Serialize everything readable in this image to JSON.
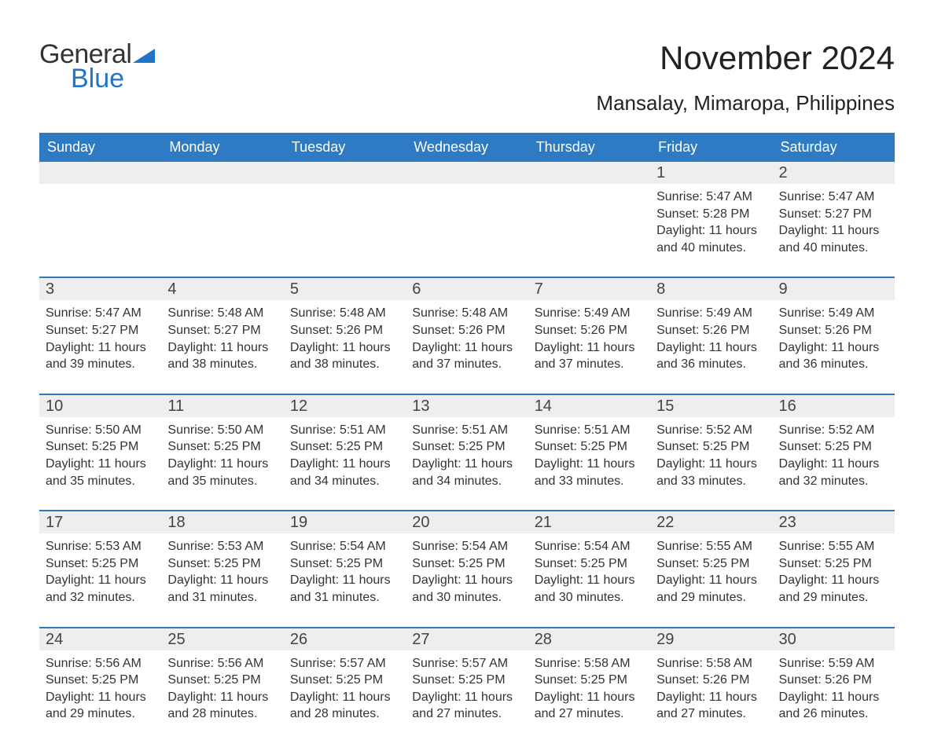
{
  "logo": {
    "text_general": "General",
    "text_blue": "Blue",
    "flag_color": "#1f76c7"
  },
  "title": "November 2024",
  "location": "Mansalay, Mimaropa, Philippines",
  "colors": {
    "header_bg": "#2f7bc3",
    "header_text": "#ffffff",
    "daynum_bg": "#eeeeee",
    "text": "#333333",
    "accent_line": "#2f7bc3",
    "page_bg": "#ffffff"
  },
  "typography": {
    "title_fontsize": 42,
    "location_fontsize": 26,
    "dayname_fontsize": 18,
    "daynum_fontsize": 20,
    "detail_fontsize": 16,
    "font_family": "Arial"
  },
  "day_names": [
    "Sunday",
    "Monday",
    "Tuesday",
    "Wednesday",
    "Thursday",
    "Friday",
    "Saturday"
  ],
  "weeks": [
    [
      null,
      null,
      null,
      null,
      null,
      {
        "day": "1",
        "sunrise": "5:47 AM",
        "sunset": "5:28 PM",
        "daylight": "11 hours and 40 minutes."
      },
      {
        "day": "2",
        "sunrise": "5:47 AM",
        "sunset": "5:27 PM",
        "daylight": "11 hours and 40 minutes."
      }
    ],
    [
      {
        "day": "3",
        "sunrise": "5:47 AM",
        "sunset": "5:27 PM",
        "daylight": "11 hours and 39 minutes."
      },
      {
        "day": "4",
        "sunrise": "5:48 AM",
        "sunset": "5:27 PM",
        "daylight": "11 hours and 38 minutes."
      },
      {
        "day": "5",
        "sunrise": "5:48 AM",
        "sunset": "5:26 PM",
        "daylight": "11 hours and 38 minutes."
      },
      {
        "day": "6",
        "sunrise": "5:48 AM",
        "sunset": "5:26 PM",
        "daylight": "11 hours and 37 minutes."
      },
      {
        "day": "7",
        "sunrise": "5:49 AM",
        "sunset": "5:26 PM",
        "daylight": "11 hours and 37 minutes."
      },
      {
        "day": "8",
        "sunrise": "5:49 AM",
        "sunset": "5:26 PM",
        "daylight": "11 hours and 36 minutes."
      },
      {
        "day": "9",
        "sunrise": "5:49 AM",
        "sunset": "5:26 PM",
        "daylight": "11 hours and 36 minutes."
      }
    ],
    [
      {
        "day": "10",
        "sunrise": "5:50 AM",
        "sunset": "5:25 PM",
        "daylight": "11 hours and 35 minutes."
      },
      {
        "day": "11",
        "sunrise": "5:50 AM",
        "sunset": "5:25 PM",
        "daylight": "11 hours and 35 minutes."
      },
      {
        "day": "12",
        "sunrise": "5:51 AM",
        "sunset": "5:25 PM",
        "daylight": "11 hours and 34 minutes."
      },
      {
        "day": "13",
        "sunrise": "5:51 AM",
        "sunset": "5:25 PM",
        "daylight": "11 hours and 34 minutes."
      },
      {
        "day": "14",
        "sunrise": "5:51 AM",
        "sunset": "5:25 PM",
        "daylight": "11 hours and 33 minutes."
      },
      {
        "day": "15",
        "sunrise": "5:52 AM",
        "sunset": "5:25 PM",
        "daylight": "11 hours and 33 minutes."
      },
      {
        "day": "16",
        "sunrise": "5:52 AM",
        "sunset": "5:25 PM",
        "daylight": "11 hours and 32 minutes."
      }
    ],
    [
      {
        "day": "17",
        "sunrise": "5:53 AM",
        "sunset": "5:25 PM",
        "daylight": "11 hours and 32 minutes."
      },
      {
        "day": "18",
        "sunrise": "5:53 AM",
        "sunset": "5:25 PM",
        "daylight": "11 hours and 31 minutes."
      },
      {
        "day": "19",
        "sunrise": "5:54 AM",
        "sunset": "5:25 PM",
        "daylight": "11 hours and 31 minutes."
      },
      {
        "day": "20",
        "sunrise": "5:54 AM",
        "sunset": "5:25 PM",
        "daylight": "11 hours and 30 minutes."
      },
      {
        "day": "21",
        "sunrise": "5:54 AM",
        "sunset": "5:25 PM",
        "daylight": "11 hours and 30 minutes."
      },
      {
        "day": "22",
        "sunrise": "5:55 AM",
        "sunset": "5:25 PM",
        "daylight": "11 hours and 29 minutes."
      },
      {
        "day": "23",
        "sunrise": "5:55 AM",
        "sunset": "5:25 PM",
        "daylight": "11 hours and 29 minutes."
      }
    ],
    [
      {
        "day": "24",
        "sunrise": "5:56 AM",
        "sunset": "5:25 PM",
        "daylight": "11 hours and 29 minutes."
      },
      {
        "day": "25",
        "sunrise": "5:56 AM",
        "sunset": "5:25 PM",
        "daylight": "11 hours and 28 minutes."
      },
      {
        "day": "26",
        "sunrise": "5:57 AM",
        "sunset": "5:25 PM",
        "daylight": "11 hours and 28 minutes."
      },
      {
        "day": "27",
        "sunrise": "5:57 AM",
        "sunset": "5:25 PM",
        "daylight": "11 hours and 27 minutes."
      },
      {
        "day": "28",
        "sunrise": "5:58 AM",
        "sunset": "5:25 PM",
        "daylight": "11 hours and 27 minutes."
      },
      {
        "day": "29",
        "sunrise": "5:58 AM",
        "sunset": "5:26 PM",
        "daylight": "11 hours and 27 minutes."
      },
      {
        "day": "30",
        "sunrise": "5:59 AM",
        "sunset": "5:26 PM",
        "daylight": "11 hours and 26 minutes."
      }
    ]
  ],
  "labels": {
    "sunrise_prefix": "Sunrise: ",
    "sunset_prefix": "Sunset: ",
    "daylight_prefix": "Daylight: "
  }
}
